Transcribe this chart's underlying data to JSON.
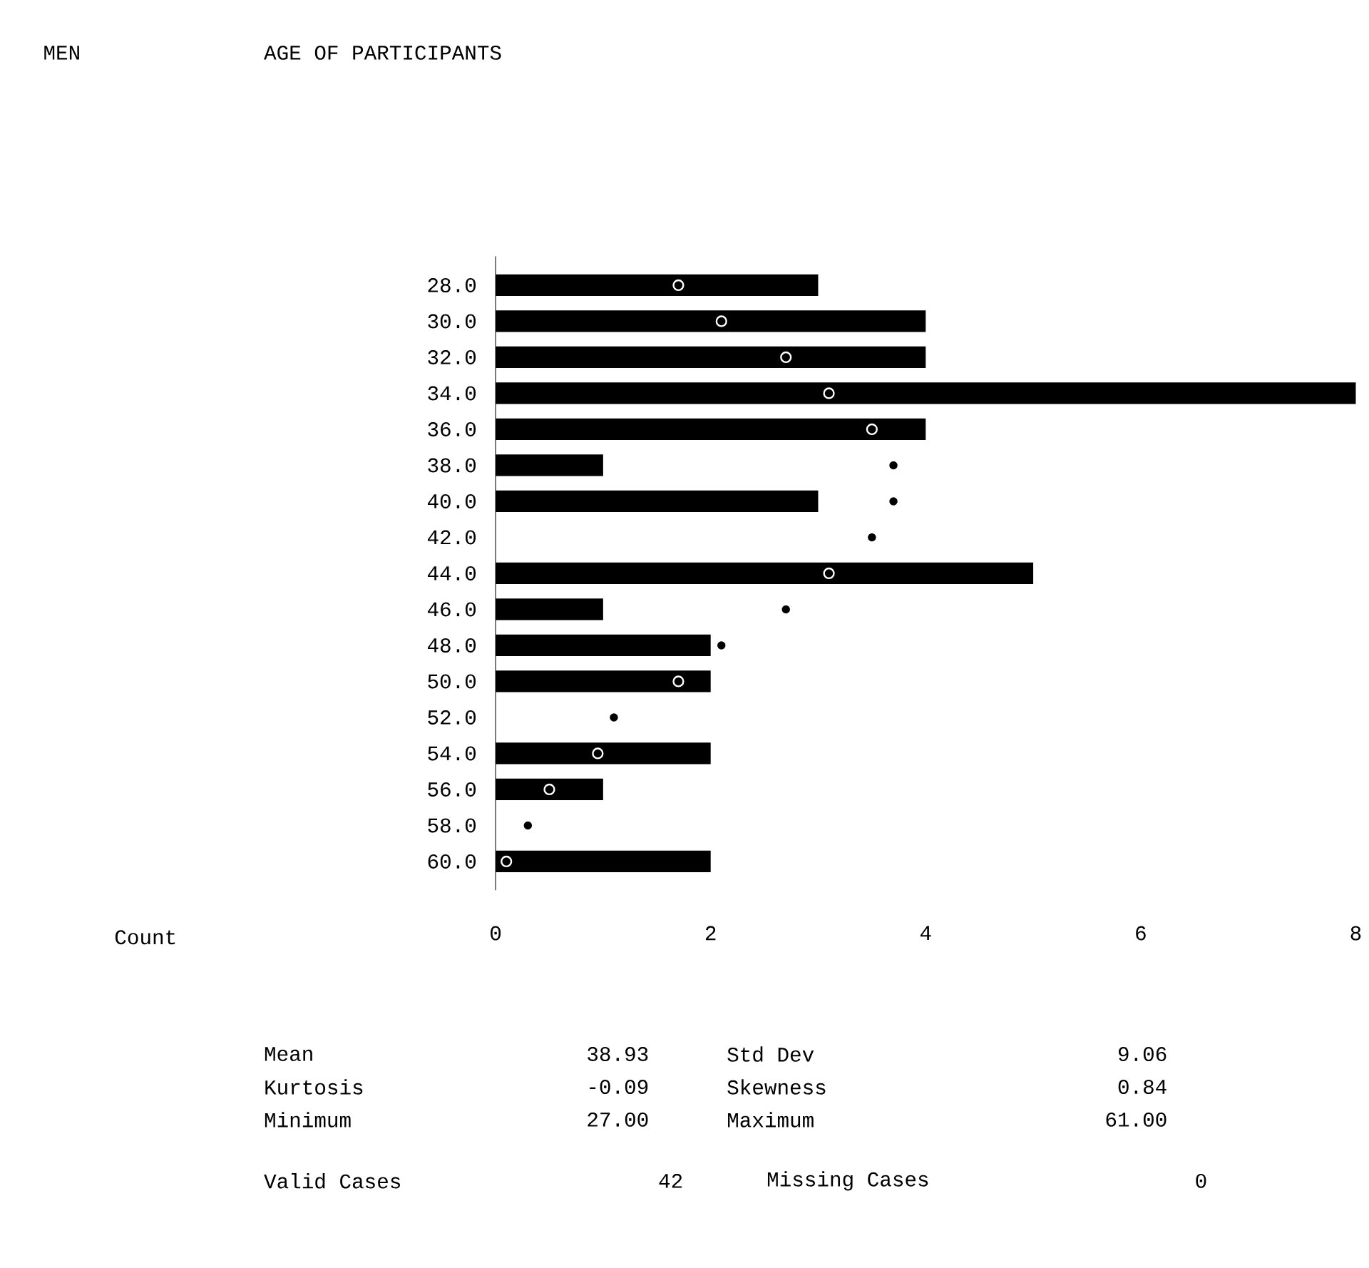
{
  "chart_data": {
    "type": "bar",
    "orientation": "horizontal",
    "subtitle": "MEN",
    "title": "AGE OF PARTICIPANTS",
    "categories": [
      "28.0",
      "30.0",
      "32.0",
      "34.0",
      "36.0",
      "38.0",
      "40.0",
      "42.0",
      "44.0",
      "46.0",
      "48.0",
      "50.0",
      "52.0",
      "54.0",
      "56.0",
      "58.0",
      "60.0"
    ],
    "series": [
      {
        "color": "#000000",
        "values": [
          3,
          4,
          4,
          8,
          4,
          1,
          3,
          0,
          5,
          1,
          2,
          2,
          0,
          2,
          1,
          0,
          2
        ]
      },
      {
        "type": "scatter",
        "color": "#000000",
        "values": [
          1.7,
          2.1,
          2.7,
          3.1,
          3.5,
          3.7,
          3.7,
          3.5,
          3.1,
          2.7,
          2.1,
          1.7,
          1.1,
          0.95,
          0.5,
          0.3,
          0.1
        ]
      }
    ],
    "xlim": [
      0,
      8
    ],
    "xticks": [
      0,
      2,
      4,
      6,
      8
    ],
    "grid": false,
    "annotations": [
      "Count",
      "Mean",
      "38.93",
      "Std Dev",
      "9.06",
      "Kurtosis",
      "-0.09",
      "Skewness",
      "0.84",
      "Minimum",
      "27.00",
      "Maximum",
      "61.00",
      "Valid Cases",
      "42",
      "Missing Cases",
      "0"
    ]
  }
}
